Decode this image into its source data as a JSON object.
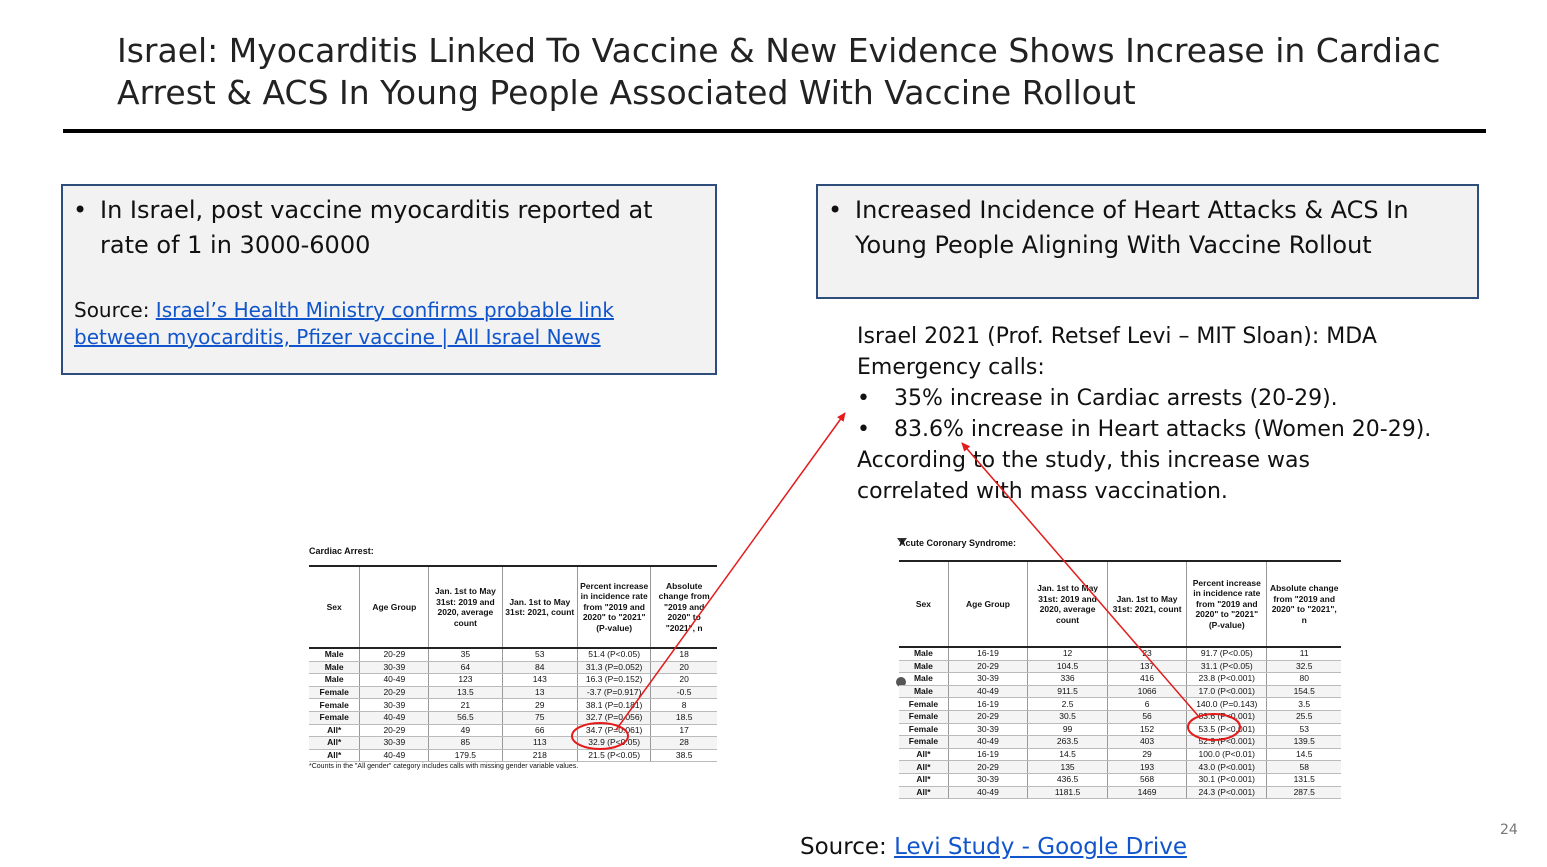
{
  "slide": {
    "title": "Israel: Myocarditis Linked To Vaccine & New Evidence Shows Increase in Cardiac Arrest & ACS In Young People Associated With Vaccine Rollout",
    "page_number": "24"
  },
  "left_box": {
    "bullet_glyph": "•",
    "bullet": "In Israel, post vaccine myocarditis reported at rate of 1 in 3000-6000",
    "source_prefix": "Source: ",
    "source_link": "Israel’s Health Ministry confirms probable link between myocarditis, Pfizer vaccine | All Israel News"
  },
  "right_box": {
    "bullet_glyph": "•",
    "bullet": "Increased Incidence of Heart Attacks & ACS In Young People Aligning With Vaccine Rollout"
  },
  "study": {
    "intro": "Israel 2021 (Prof. Retsef Levi – MIT Sloan): MDA Emergency calls:",
    "bullet_glyph": "•",
    "points": [
      "35% increase in Cardiac arrests (20-29).",
      "83.6% increase in Heart attacks (Women 20-29)."
    ],
    "conclusion": "According to the study, this increase was correlated with mass vaccination."
  },
  "cardiac_table": {
    "caption": "Cardiac Arrest:",
    "headers": [
      "Sex",
      "Age Group",
      "Jan. 1st to May 31st: 2019 and 2020, average count",
      "Jan. 1st to May 31st: 2021, count",
      "Percent increase in incidence rate from \"2019 and 2020\" to \"2021\" (P-value)",
      "Absolute change from \"2019 and 2020\" to \"2021\", n"
    ],
    "rows": [
      [
        "Male",
        "20-29",
        "35",
        "53",
        "51.4 (P<0.05)",
        "18"
      ],
      [
        "Male",
        "30-39",
        "64",
        "84",
        "31.3 (P=0.052)",
        "20"
      ],
      [
        "Male",
        "40-49",
        "123",
        "143",
        "16.3 (P=0.152)",
        "20"
      ],
      [
        "Female",
        "20-29",
        "13.5",
        "13",
        "-3.7 (P=0.917)",
        "-0.5"
      ],
      [
        "Female",
        "30-39",
        "21",
        "29",
        "38.1 (P=0.181)",
        "8"
      ],
      [
        "Female",
        "40-49",
        "56.5",
        "75",
        "32.7 (P=0.056)",
        "18.5"
      ],
      [
        "All*",
        "20-29",
        "49",
        "66",
        "34.7 (P=0.061)",
        "17"
      ],
      [
        "All*",
        "30-39",
        "85",
        "113",
        "32.9 (P<0.05)",
        "28"
      ],
      [
        "All*",
        "40-49",
        "179.5",
        "218",
        "21.5 (P<0.05)",
        "38.5"
      ]
    ],
    "footnote": "*Counts in the \"All gender\" category includes calls with missing gender variable values."
  },
  "acs_table": {
    "caption": "Acute Coronary Syndrome:",
    "headers": [
      "Sex",
      "Age Group",
      "Jan. 1st to May 31st: 2019 and 2020, average count",
      "Jan. 1st to May 31st: 2021, count",
      "Percent increase in incidence rate from \"2019 and 2020\" to \"2021\" (P-value)",
      "Absolute change from \"2019 and 2020\" to \"2021\", n"
    ],
    "rows": [
      [
        "Male",
        "16-19",
        "12",
        "23",
        "91.7 (P<0.05)",
        "11"
      ],
      [
        "Male",
        "20-29",
        "104.5",
        "137",
        "31.1 (P<0.05)",
        "32.5"
      ],
      [
        "Male",
        "30-39",
        "336",
        "416",
        "23.8 (P<0.001)",
        "80"
      ],
      [
        "Male",
        "40-49",
        "911.5",
        "1066",
        "17.0 (P<0.001)",
        "154.5"
      ],
      [
        "Female",
        "16-19",
        "2.5",
        "6",
        "140.0 (P=0.143)",
        "3.5"
      ],
      [
        "Female",
        "20-29",
        "30.5",
        "56",
        "83.6 (P<0.001)",
        "25.5"
      ],
      [
        "Female",
        "30-39",
        "99",
        "152",
        "53.5 (P<0.001)",
        "53"
      ],
      [
        "Female",
        "40-49",
        "263.5",
        "403",
        "52.9 (P<0.001)",
        "139.5"
      ],
      [
        "All*",
        "16-19",
        "14.5",
        "29",
        "100.0 (P<0.01)",
        "14.5"
      ],
      [
        "All*",
        "20-29",
        "135",
        "193",
        "43.0 (P<0.001)",
        "58"
      ],
      [
        "All*",
        "30-39",
        "436.5",
        "568",
        "30.1 (P<0.001)",
        "131.5"
      ],
      [
        "All*",
        "40-49",
        "1181.5",
        "1469",
        "24.3 (P<0.001)",
        "287.5"
      ]
    ]
  },
  "footer": {
    "source_prefix": "Source: ",
    "source_link": "Levi Study - Google Drive"
  },
  "annotation_color": "#e31b1b"
}
